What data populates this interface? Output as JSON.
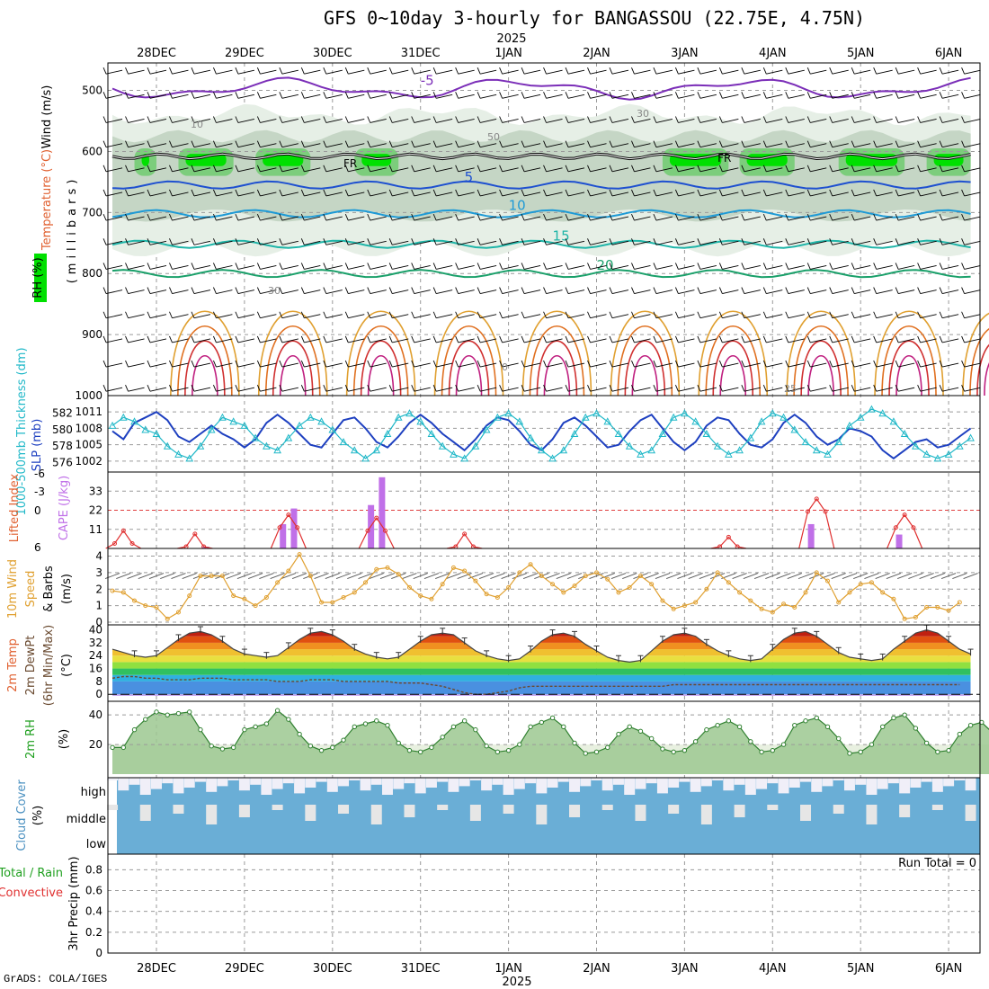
{
  "title": "GFS 0~10day 3-hourly for BANGASSOU (22.75E, 4.75N)",
  "credit": "GrADS: COLA/IGES",
  "chart_data": {
    "type": "meteogram",
    "year_label": "2025",
    "date_labels": [
      "28DEC",
      "29DEC",
      "30DEC",
      "31DEC",
      "1JAN",
      "2JAN",
      "3JAN",
      "4JAN",
      "5JAN",
      "6JAN"
    ],
    "panels": [
      {
        "id": "upper_air",
        "labels": {
          "wind": "Wind (m/s)",
          "temperature": "Temperature (°C)",
          "rh": "RH (%)",
          "pressure_unit": "(millibars)"
        },
        "pressure_ticks": [
          500,
          600,
          700,
          800,
          900,
          1000
        ],
        "isotherm_levels": [
          {
            "label": "-5",
            "mb": 497
          },
          {
            "label": "5",
            "mb": 655
          },
          {
            "label": "10",
            "mb": 702
          },
          {
            "label": "15",
            "mb": 752
          },
          {
            "label": "20",
            "mb": 800
          }
        ],
        "freezing_label": "FR",
        "freezing_level_mb": 608,
        "rh_contour_labels": [
          "10",
          "30",
          "50",
          "30",
          "0",
          "25"
        ]
      },
      {
        "id": "slp_thickness",
        "labels": {
          "thickness": "1000-500mb Thickness (dm)",
          "slp": "SLP (mb)"
        },
        "thickness_ticks": [
          576,
          578,
          580,
          582
        ],
        "slp_ticks": [
          1002,
          1005,
          1008,
          1011
        ],
        "slp_series": [
          1007.5,
          1006,
          1009,
          1010,
          1011,
          1009.5,
          1006.5,
          1005.5,
          1007,
          1008.5,
          1007,
          1006,
          1004.5,
          1006,
          1009,
          1010.5,
          1009,
          1007,
          1005,
          1004.5,
          1007,
          1009.5,
          1010,
          1008,
          1005.5,
          1004.5,
          1006.5,
          1009,
          1010.5,
          1009,
          1007,
          1005.5,
          1004,
          1006,
          1008.5,
          1010,
          1009.5,
          1007.5,
          1005,
          1004,
          1006,
          1009,
          1010,
          1008.5,
          1006.5,
          1004.5,
          1005,
          1007.5,
          1009.5,
          1010.5,
          1008,
          1005.5,
          1004,
          1005.5,
          1008.5,
          1010,
          1009.5,
          1007,
          1005,
          1004.5,
          1006,
          1009,
          1010.5,
          1009,
          1006.5,
          1005,
          1006,
          1008,
          1007.5,
          1006.5,
          1004,
          1002.5,
          1004,
          1005.5,
          1006,
          1004.5,
          1005,
          1006.5,
          1008
        ],
        "thickness_series": [
          580.5,
          581.5,
          581,
          580,
          579.5,
          578,
          577,
          576.5,
          578,
          580,
          581.5,
          581,
          580.5,
          579,
          578,
          577.5,
          579,
          580.5,
          581.5,
          581,
          580,
          578.5,
          577.5,
          576.5,
          577.5,
          579.5,
          581.5,
          582,
          581,
          579.5,
          578,
          577,
          576.5,
          578,
          580,
          581.5,
          582,
          581,
          579,
          577.5,
          576.5,
          577.5,
          579.5,
          581.5,
          582,
          581,
          579.5,
          578,
          577,
          577.5,
          579.5,
          581.5,
          582,
          581,
          579.5,
          578,
          577,
          577.5,
          579,
          581,
          582,
          581.5,
          580,
          578.5,
          577.5,
          577,
          578.5,
          580.5,
          581.5,
          582.5,
          582,
          581,
          579.5,
          578,
          577,
          576.5,
          577,
          578,
          579
        ]
      },
      {
        "id": "stability",
        "labels": {
          "lifted_index": "Lifted Index",
          "cape": "CAPE (J/kg)"
        },
        "li_ticks": [
          "6",
          "0",
          "-3",
          "-6"
        ],
        "cape_ticks": [
          11,
          22,
          33
        ],
        "cape_reference": 22,
        "cape_bars": [
          {
            "t": 8.5,
            "value": 1
          },
          {
            "t": 15.5,
            "value": 14
          },
          {
            "t": 16.5,
            "value": 23
          },
          {
            "t": 23.5,
            "value": 25
          },
          {
            "t": 24.5,
            "value": 41
          },
          {
            "t": 63.5,
            "value": 14
          },
          {
            "t": 71.5,
            "value": 8
          }
        ],
        "li_peaks": [
          {
            "t": 1,
            "value": 3.5
          },
          {
            "t": 7.5,
            "value": 4
          },
          {
            "t": 16,
            "value": 1
          },
          {
            "t": 24,
            "value": 1.5
          },
          {
            "t": 32,
            "value": 4
          },
          {
            "t": 56,
            "value": 4.5
          },
          {
            "t": 64,
            "value": -1.5
          },
          {
            "t": 72,
            "value": 1
          }
        ]
      },
      {
        "id": "wind10m",
        "labels": {
          "wind10m": "10m Wind",
          "speed": "Speed",
          "barbs": "& Barbs",
          "unit": "(m/s)"
        },
        "ticks": [
          0,
          1,
          2,
          3,
          4
        ],
        "speed_series": [
          1.9,
          1.8,
          1.3,
          1.0,
          0.9,
          0.2,
          0.6,
          1.6,
          2.8,
          2.8,
          2.8,
          1.6,
          1.4,
          1.0,
          1.5,
          2.4,
          3.1,
          4.1,
          2.8,
          1.2,
          1.2,
          1.5,
          1.8,
          2.4,
          3.2,
          3.3,
          2.9,
          2.1,
          1.6,
          1.4,
          2.3,
          3.3,
          3.1,
          2.5,
          1.7,
          1.5,
          2.1,
          3.0,
          3.5,
          2.8,
          2.3,
          1.8,
          2.2,
          2.8,
          3.0,
          2.6,
          1.8,
          2.1,
          2.8,
          2.3,
          1.3,
          0.8,
          1.0,
          1.2,
          2.0,
          3.0,
          2.4,
          1.8,
          1.3,
          0.8,
          0.6,
          1.1,
          0.9,
          1.8,
          3.0,
          2.5,
          1.2,
          1.8,
          2.3,
          2.4,
          1.8,
          1.4,
          0.2,
          0.3,
          0.9,
          0.9,
          0.7,
          1.2
        ]
      },
      {
        "id": "temp2m",
        "labels": {
          "temp": "2m Temp",
          "dewpt": "2m DewPt",
          "minmax": "(6hr Min/Max)",
          "unit": "(°C)"
        },
        "ticks": [
          0,
          8,
          16,
          24,
          32,
          40
        ],
        "temp_series": [
          28,
          26,
          24,
          23,
          24,
          29,
          34,
          38,
          39,
          37,
          33,
          28,
          25,
          24,
          23,
          24,
          29,
          34,
          38,
          39,
          37,
          33,
          28,
          25,
          23,
          22,
          23,
          28,
          33,
          37,
          38,
          37,
          32,
          27,
          24,
          22,
          21,
          22,
          27,
          33,
          37,
          38,
          36,
          31,
          27,
          23,
          21,
          20,
          21,
          27,
          33,
          37,
          38,
          36,
          31,
          27,
          24,
          22,
          21,
          22,
          28,
          34,
          38,
          39,
          36,
          31,
          26,
          23,
          22,
          21,
          22,
          28,
          33,
          38,
          40,
          38,
          33,
          28,
          25
        ],
        "dewpoint_series": [
          10,
          11,
          11,
          10,
          10,
          9,
          9,
          9,
          10,
          10,
          10,
          9,
          9,
          9,
          9,
          8,
          8,
          8,
          9,
          9,
          9,
          8,
          8,
          8,
          8,
          8,
          7,
          7,
          7,
          6,
          5,
          3,
          1,
          0,
          0,
          1,
          2,
          4,
          5,
          5,
          5,
          5,
          5,
          5,
          5,
          5,
          5,
          5,
          5,
          5,
          5,
          6,
          6,
          6,
          6,
          6,
          6,
          6,
          6,
          6,
          6,
          6,
          6,
          6,
          6,
          6,
          6,
          6,
          6,
          6,
          6,
          6,
          6,
          6,
          6,
          6,
          6,
          6
        ]
      },
      {
        "id": "rh2m",
        "labels": {
          "rh": "2m RH",
          "unit": "(%)"
        },
        "ticks": [
          20,
          40
        ],
        "rh_series": [
          18,
          18,
          30,
          37,
          42,
          40,
          41,
          42,
          30,
          19,
          17,
          18,
          30,
          32,
          34,
          43,
          37,
          27,
          19,
          16,
          18,
          23,
          32,
          34,
          36,
          33,
          21,
          16,
          15,
          18,
          25,
          32,
          36,
          30,
          19,
          15,
          16,
          20,
          32,
          35,
          38,
          32,
          21,
          14,
          15,
          18,
          27,
          32,
          29,
          24,
          17,
          15,
          16,
          22,
          30,
          33,
          36,
          32,
          22,
          15,
          16,
          20,
          33,
          36,
          38,
          32,
          24,
          14,
          15,
          20,
          32,
          38,
          40,
          31,
          21,
          15,
          16,
          27,
          33,
          35,
          28
        ]
      },
      {
        "id": "cloud",
        "labels": {
          "cloud": "Cloud Cover",
          "unit": "(%)",
          "high": "high",
          "middle": "middle",
          "low": "low"
        }
      },
      {
        "id": "precip",
        "labels": {
          "total": "Total / Rain",
          "convective": "Convective",
          "precip": "3hr Precip (mm)",
          "run_total": "Run Total = 0"
        },
        "ticks": [
          "0",
          "0.2",
          "0.4",
          "0.6",
          "0.8"
        ]
      }
    ]
  }
}
